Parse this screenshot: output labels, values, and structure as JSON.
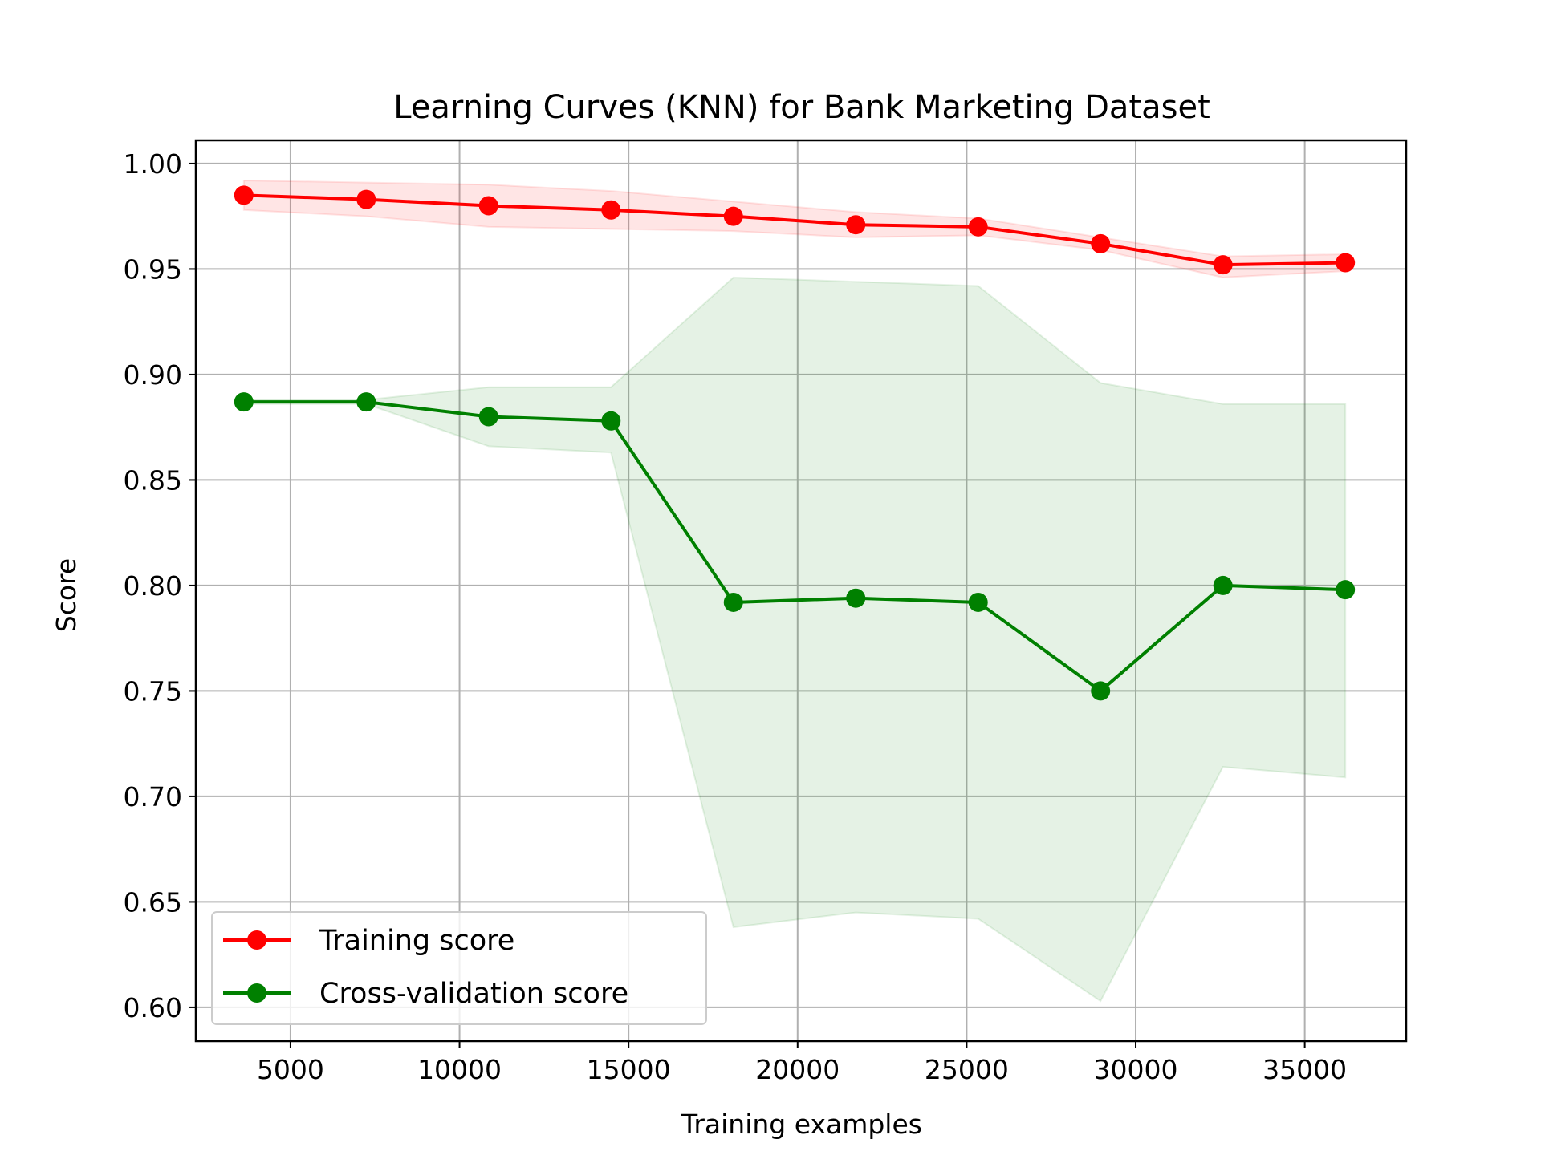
{
  "chart_data": {
    "type": "line",
    "title": "Learning Curves (KNN) for Bank Marketing Dataset",
    "xlabel": "Training examples",
    "ylabel": "Score",
    "xlim": [
      2200,
      38000
    ],
    "ylim": [
      0.584,
      1.011
    ],
    "xticks": [
      5000,
      10000,
      15000,
      20000,
      25000,
      30000,
      35000
    ],
    "xtick_labels": [
      "5000",
      "10000",
      "15000",
      "20000",
      "25000",
      "30000",
      "35000"
    ],
    "yticks": [
      0.6,
      0.65,
      0.7,
      0.75,
      0.8,
      0.85,
      0.9,
      0.95,
      1.0
    ],
    "ytick_labels": [
      "0.60",
      "0.65",
      "0.70",
      "0.75",
      "0.80",
      "0.85",
      "0.90",
      "0.95",
      "1.00"
    ],
    "grid": true,
    "legend_position": "lower-left",
    "x": [
      3620,
      7240,
      10860,
      14480,
      18100,
      21720,
      25340,
      28960,
      32580,
      36200
    ],
    "series": [
      {
        "name": "Training score",
        "color": "#ff0000",
        "band_color": "#ff0000",
        "marker": "circle",
        "values": [
          0.985,
          0.983,
          0.98,
          0.978,
          0.975,
          0.971,
          0.97,
          0.962,
          0.952,
          0.953
        ],
        "band_upper": [
          0.992,
          0.991,
          0.99,
          0.987,
          0.982,
          0.977,
          0.974,
          0.965,
          0.956,
          0.957
        ],
        "band_lower": [
          0.978,
          0.975,
          0.97,
          0.969,
          0.968,
          0.965,
          0.966,
          0.959,
          0.946,
          0.949
        ]
      },
      {
        "name": "Cross-validation score",
        "color": "#008000",
        "band_color": "#008000",
        "marker": "circle",
        "values": [
          0.887,
          0.887,
          0.88,
          0.878,
          0.792,
          0.794,
          0.792,
          0.75,
          0.8,
          0.798
        ],
        "band_upper": [
          0.888,
          0.888,
          0.894,
          0.894,
          0.946,
          0.944,
          0.942,
          0.896,
          0.886,
          0.886
        ],
        "band_lower": [
          0.886,
          0.886,
          0.866,
          0.863,
          0.638,
          0.645,
          0.642,
          0.603,
          0.714,
          0.709
        ]
      }
    ]
  }
}
